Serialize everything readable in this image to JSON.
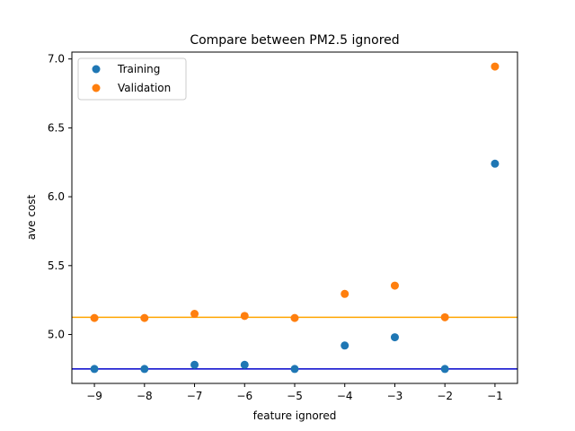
{
  "chart_data": {
    "type": "scatter",
    "title": "Compare between PM2.5 ignored",
    "xlabel": "feature ignored",
    "ylabel": "ave cost",
    "xlim": [
      -9.45,
      -0.55
    ],
    "ylim": [
      4.645,
      7.05
    ],
    "xticks": [
      -9,
      -8,
      -7,
      -6,
      -5,
      -4,
      -3,
      -2,
      -1
    ],
    "xtick_labels": [
      "−9",
      "−8",
      "−7",
      "−6",
      "−5",
      "−4",
      "−3",
      "−2",
      "−1"
    ],
    "yticks": [
      5.0,
      5.5,
      6.0,
      6.5,
      7.0
    ],
    "ytick_labels": [
      "5.0",
      "5.5",
      "6.0",
      "6.5",
      "7.0"
    ],
    "grid": false,
    "legend_position": "top-left",
    "series": [
      {
        "name": "Training",
        "color": "#1f77b4",
        "x": [
          -9,
          -8,
          -7,
          -6,
          -5,
          -4,
          -3,
          -2,
          -1
        ],
        "y": [
          4.75,
          4.75,
          4.78,
          4.78,
          4.75,
          4.92,
          4.98,
          4.75,
          6.24
        ]
      },
      {
        "name": "Validation",
        "color": "#ff7f0e",
        "x": [
          -9,
          -8,
          -7,
          -6,
          -5,
          -4,
          -3,
          -2,
          -1
        ],
        "y": [
          5.12,
          5.12,
          5.15,
          5.135,
          5.12,
          5.295,
          5.355,
          5.125,
          6.945
        ]
      }
    ],
    "reference_lines": [
      {
        "y": 4.75,
        "color": "#0000cc"
      },
      {
        "y": 5.125,
        "color": "#ffa500"
      }
    ]
  }
}
